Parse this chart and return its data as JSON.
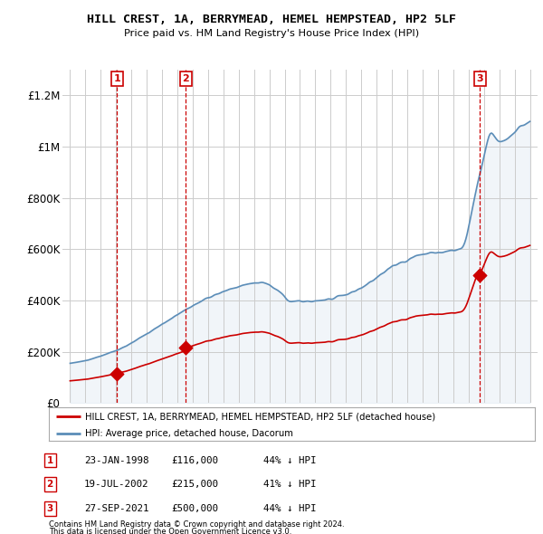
{
  "title": "HILL CREST, 1A, BERRYMEAD, HEMEL HEMPSTEAD, HP2 5LF",
  "subtitle": "Price paid vs. HM Land Registry's House Price Index (HPI)",
  "legend_label_red": "HILL CREST, 1A, BERRYMEAD, HEMEL HEMPSTEAD, HP2 5LF (detached house)",
  "legend_label_blue": "HPI: Average price, detached house, Dacorum",
  "footer_line1": "Contains HM Land Registry data © Crown copyright and database right 2024.",
  "footer_line2": "This data is licensed under the Open Government Licence v3.0.",
  "sales": [
    {
      "num": 1,
      "date": "23-JAN-1998",
      "price": 116000,
      "pct": "44%",
      "dir": "↓",
      "x_year": 1998.06
    },
    {
      "num": 2,
      "date": "19-JUL-2002",
      "price": 215000,
      "pct": "41%",
      "dir": "↓",
      "x_year": 2002.54
    },
    {
      "num": 3,
      "date": "27-SEP-2021",
      "price": 500000,
      "pct": "44%",
      "dir": "↓",
      "x_year": 2021.74
    }
  ],
  "red_color": "#cc0000",
  "blue_color": "#5b8db8",
  "blue_fill": "#c8d8e8",
  "dashed_color": "#cc0000",
  "bg_color": "#ffffff",
  "grid_color": "#cccccc",
  "ylim": [
    0,
    1300000
  ],
  "xlim_start": 1994.5,
  "xlim_end": 2025.5,
  "yticks": [
    0,
    200000,
    400000,
    600000,
    800000,
    1000000,
    1200000
  ],
  "ytick_labels": [
    "£0",
    "£200K",
    "£400K",
    "£600K",
    "£800K",
    "£1M",
    "£1.2M"
  ],
  "xticks": [
    1995,
    1996,
    1997,
    1998,
    1999,
    2000,
    2001,
    2002,
    2003,
    2004,
    2005,
    2006,
    2007,
    2008,
    2009,
    2010,
    2011,
    2012,
    2013,
    2014,
    2015,
    2016,
    2017,
    2018,
    2019,
    2020,
    2021,
    2022,
    2023,
    2024,
    2025
  ]
}
